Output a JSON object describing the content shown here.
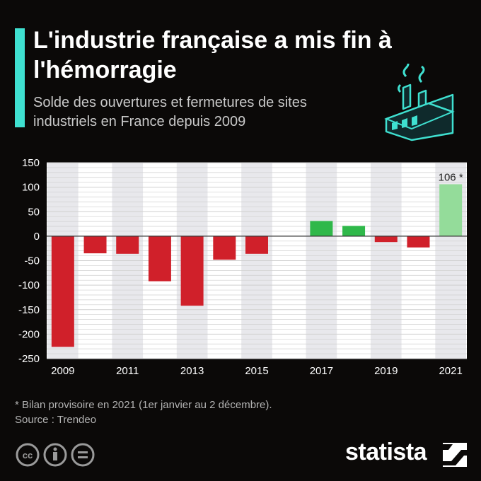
{
  "header": {
    "title": "L'industrie française a mis fin à l'hémorragie",
    "subtitle": "Solde des ouvertures et fermetures de sites industriels en France depuis 2009"
  },
  "chart_data": {
    "type": "bar",
    "categories": [
      "2009",
      "2010",
      "2011",
      "2012",
      "2013",
      "2014",
      "2015",
      "2016",
      "2017",
      "2018",
      "2019",
      "2020",
      "2021"
    ],
    "values": [
      -226,
      -35,
      -36,
      -92,
      -142,
      -48,
      -36,
      0,
      31,
      21,
      -12,
      -23,
      106
    ],
    "tick_labels": {
      "2009": "2009",
      "2011": "2011",
      "2013": "2013",
      "2015": "2015",
      "2017": "2017",
      "2019": "2019",
      "2021": "2021"
    },
    "ylim": [
      -250,
      150
    ],
    "yticks": [
      150,
      100,
      50,
      0,
      -50,
      -100,
      -150,
      -200,
      -250
    ],
    "grid": true,
    "data_label": {
      "category": "2021",
      "text": "106 *"
    },
    "colors": {
      "negative": "#d0202a",
      "positive": "#2fb84a",
      "provisional": "#94dc9a",
      "grid": "#cfcfcf",
      "panel": "#ffffff",
      "shade": "#e8e8ec"
    },
    "xlabel": "",
    "ylabel": ""
  },
  "footer": {
    "footnote": "* Bilan provisoire en 2021 (1er janvier au 2 décembre).",
    "source": "Source : Trendeo",
    "brand": "statista"
  }
}
